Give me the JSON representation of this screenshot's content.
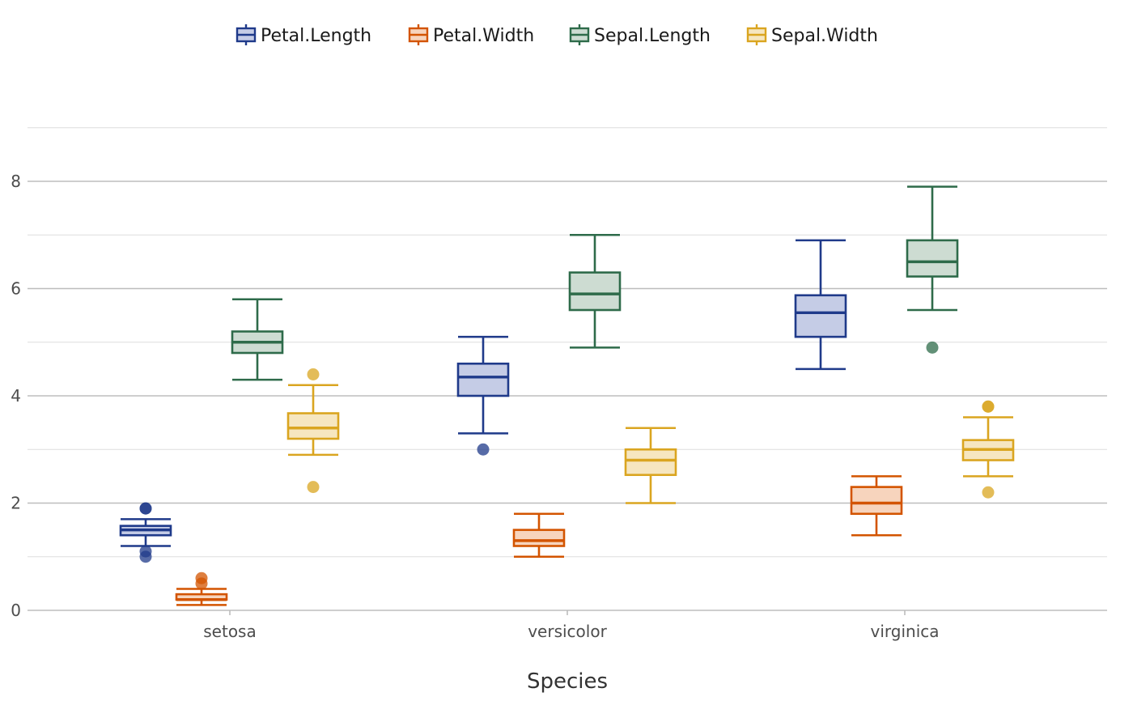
{
  "chart_data": {
    "type": "box",
    "xlabel": "Species",
    "ylabel": "",
    "ylim": [
      0,
      9
    ],
    "y_ticks": [
      0,
      2,
      4,
      6,
      8
    ],
    "grid": true,
    "legend_position": "top",
    "categories": [
      "setosa",
      "versicolor",
      "virginica"
    ],
    "series": [
      {
        "name": "Petal.Length",
        "color": "#1f3a8a",
        "fill": "#c5cce6",
        "stats": [
          {
            "min": 1.2,
            "q1": 1.4,
            "median": 1.5,
            "q3": 1.575,
            "max": 1.7,
            "outliers": [
              1.0,
              1.1,
              1.9,
              1.9
            ]
          },
          {
            "min": 3.3,
            "q1": 4.0,
            "median": 4.35,
            "q3": 4.6,
            "max": 5.1,
            "outliers": [
              3.0
            ]
          },
          {
            "min": 4.5,
            "q1": 5.1,
            "median": 5.55,
            "q3": 5.875,
            "max": 6.9,
            "outliers": []
          }
        ]
      },
      {
        "name": "Petal.Width",
        "color": "#d35400",
        "fill": "#f7d4bd",
        "stats": [
          {
            "min": 0.1,
            "q1": 0.2,
            "median": 0.2,
            "q3": 0.3,
            "max": 0.4,
            "outliers": [
              0.5,
              0.6
            ]
          },
          {
            "min": 1.0,
            "q1": 1.2,
            "median": 1.3,
            "q3": 1.5,
            "max": 1.8,
            "outliers": []
          },
          {
            "min": 1.4,
            "q1": 1.8,
            "median": 2.0,
            "q3": 2.3,
            "max": 2.5,
            "outliers": []
          }
        ]
      },
      {
        "name": "Sepal.Length",
        "color": "#2e6b4a",
        "fill": "#cddcd2",
        "stats": [
          {
            "min": 4.3,
            "q1": 4.8,
            "median": 5.0,
            "q3": 5.2,
            "max": 5.8,
            "outliers": []
          },
          {
            "min": 4.9,
            "q1": 5.6,
            "median": 5.9,
            "q3": 6.3,
            "max": 7.0,
            "outliers": []
          },
          {
            "min": 5.6,
            "q1": 6.225,
            "median": 6.5,
            "q3": 6.9,
            "max": 7.9,
            "outliers": [
              4.9
            ]
          }
        ]
      },
      {
        "name": "Sepal.Width",
        "color": "#daa520",
        "fill": "#f6e6c0",
        "stats": [
          {
            "min": 2.9,
            "q1": 3.2,
            "median": 3.4,
            "q3": 3.675,
            "max": 4.2,
            "outliers": [
              4.4,
              2.3
            ]
          },
          {
            "min": 2.0,
            "q1": 2.525,
            "median": 2.8,
            "q3": 3.0,
            "max": 3.4,
            "outliers": []
          },
          {
            "min": 2.5,
            "q1": 2.8,
            "median": 3.0,
            "q3": 3.175,
            "max": 3.6,
            "outliers": [
              3.8,
              3.8,
              2.2
            ]
          }
        ]
      }
    ]
  }
}
